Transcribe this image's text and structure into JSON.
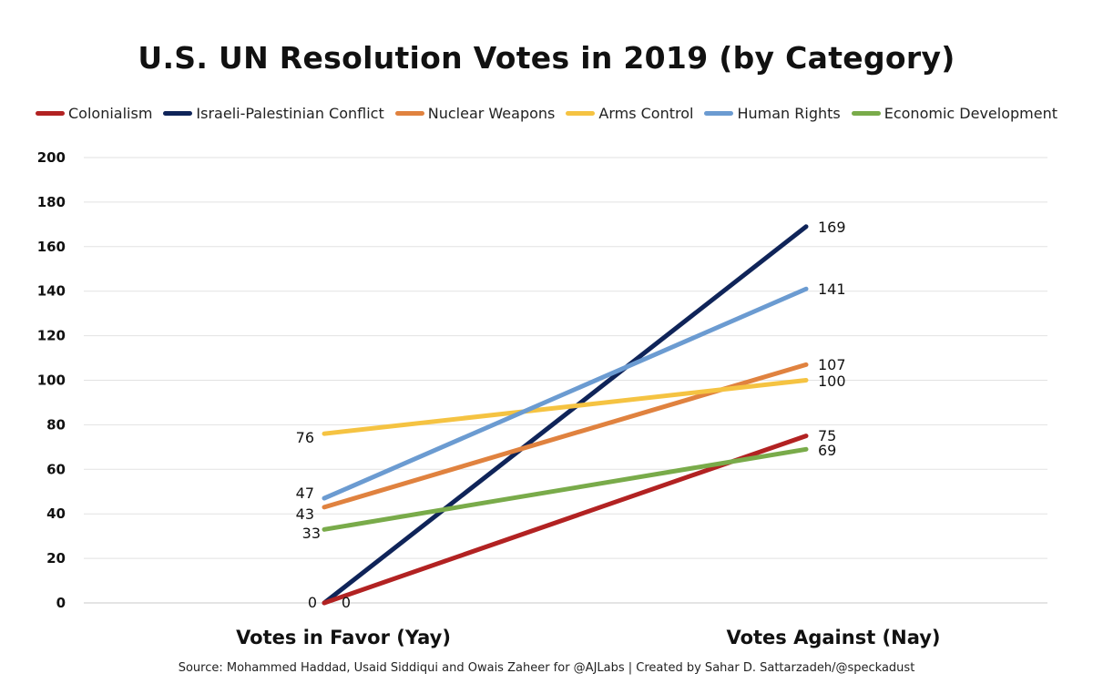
{
  "chart_data": {
    "type": "line",
    "title": "U.S. UN Resolution Votes in 2019 (by Category)",
    "categories": [
      "Votes in Favor (Yay)",
      "Votes Against (Nay)"
    ],
    "yticks": [
      "0",
      "20",
      "40",
      "60",
      "80",
      "100",
      "120",
      "140",
      "160",
      "180",
      "200"
    ],
    "ylim": [
      0,
      200
    ],
    "grid": true,
    "legend_position": "top",
    "series": [
      {
        "name": "Colonialism",
        "values": [
          0,
          75
        ],
        "color": "#b22222",
        "labels": [
          "0",
          "75"
        ]
      },
      {
        "name": "Israeli-Palestinian Conflict",
        "values": [
          0,
          169
        ],
        "color": "#0f2459",
        "labels": [
          "0",
          "169"
        ]
      },
      {
        "name": "Nuclear Weapons",
        "values": [
          43,
          107
        ],
        "color": "#e0823f",
        "labels": [
          "43",
          "107"
        ]
      },
      {
        "name": "Arms Control",
        "values": [
          76,
          100
        ],
        "color": "#f5c342",
        "labels": [
          "76",
          "100"
        ]
      },
      {
        "name": "Human Rights",
        "values": [
          47,
          141
        ],
        "color": "#6b9bd1",
        "labels": [
          "47",
          "141"
        ]
      },
      {
        "name": "Economic Development",
        "values": [
          33,
          69
        ],
        "color": "#79ab4a",
        "labels": [
          "33",
          "69"
        ]
      }
    ],
    "source": "Source: Mohammed Haddad, Usaid Siddiqui and Owais Zaheer for @AJLabs | Created by Sahar D. Sattarzadeh/@speckadust"
  }
}
